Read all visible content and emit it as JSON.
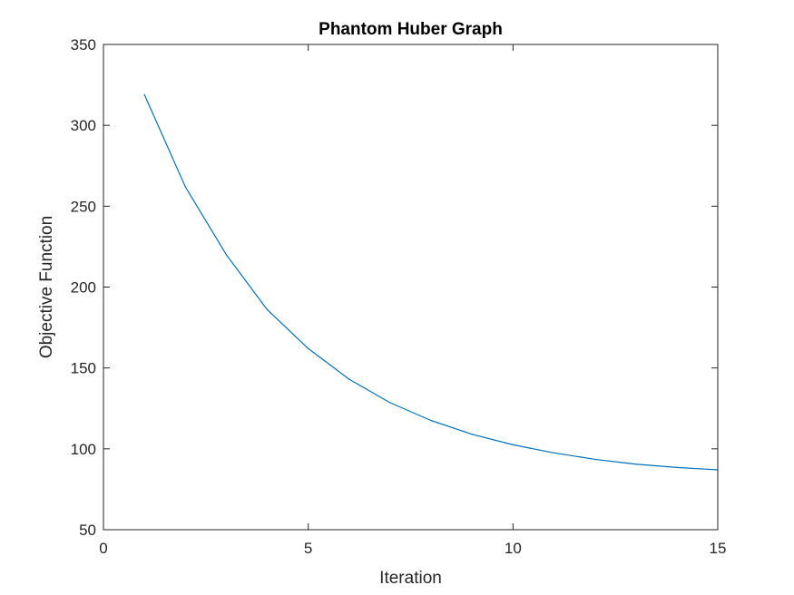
{
  "chart_data": {
    "type": "line",
    "title": "Phantom Huber Graph",
    "xlabel": "Iteration",
    "ylabel": "Objective Function",
    "xlim": [
      0,
      15
    ],
    "ylim": [
      50,
      350
    ],
    "xticks": [
      0,
      5,
      10,
      15
    ],
    "yticks": [
      50,
      100,
      150,
      200,
      250,
      300,
      350
    ],
    "xtick_labels": [
      "0",
      "5",
      "10",
      "15"
    ],
    "ytick_labels": [
      "50",
      "100",
      "150",
      "200",
      "250",
      "300",
      "350"
    ],
    "grid": false,
    "legend": false,
    "series": [
      {
        "color": "#0072BD",
        "x": [
          1,
          2,
          3,
          4,
          5,
          6,
          7,
          8,
          9,
          10,
          11,
          12,
          13,
          14,
          15
        ],
        "y": [
          319,
          262,
          220,
          186,
          162,
          143,
          128.5,
          117.5,
          109,
          102.5,
          97.5,
          93.5,
          90.5,
          88.5,
          87
        ]
      }
    ]
  }
}
